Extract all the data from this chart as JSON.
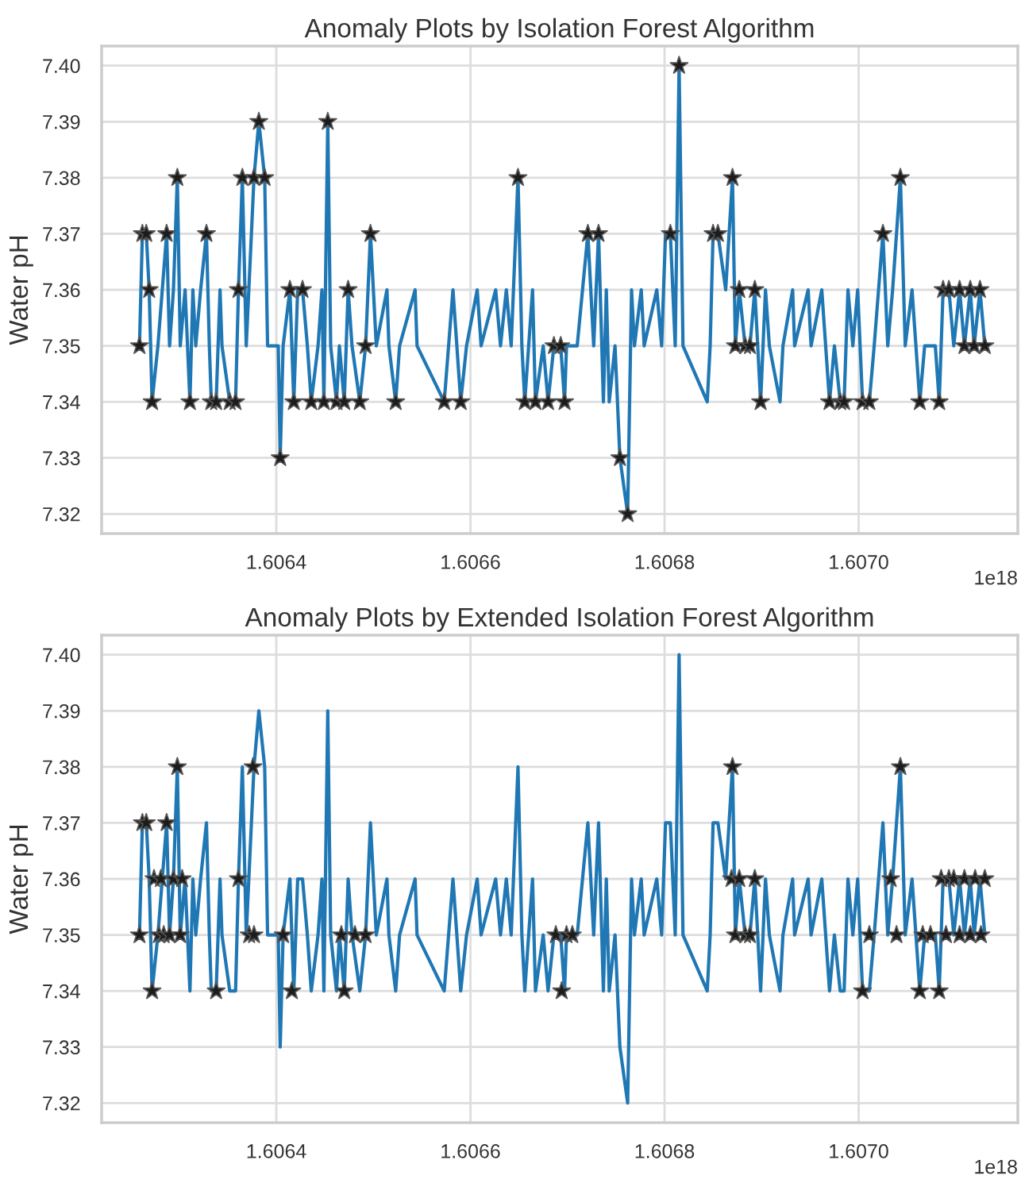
{
  "chart_data": [
    {
      "type": "line",
      "title": "Anomaly Plots by Isolation Forest Algorithm",
      "ylabel": "Water pH",
      "annotations": [
        "1e18"
      ],
      "xlim": [
        1.60622,
        1.607164
      ],
      "xticks": [
        1.6064,
        1.6066,
        1.6068,
        {
          "value": 1.607,
          "label": "1.6070"
        }
      ],
      "ylim": [
        7.3165,
        7.4035
      ],
      "yticks": [
        7.32,
        7.33,
        7.34,
        7.35,
        7.36,
        7.37,
        7.38,
        7.39,
        {
          "value": 7.4,
          "label": "7.40"
        }
      ],
      "grid": true,
      "series": [
        {
          "color": "#1f77b4",
          "marker": "none",
          "x": [
            1.606259,
            1.606262,
            1.606266,
            1.606269,
            1.606272,
            1.606278,
            1.606287,
            1.60629,
            1.606294,
            1.606298,
            1.606301,
            1.606306,
            1.606311,
            1.606314,
            1.606317,
            1.606322,
            1.606328,
            1.606331,
            1.606333,
            1.606338,
            1.606342,
            1.606344,
            1.606352,
            1.606358,
            1.606361,
            1.606365,
            1.606369,
            1.606377,
            1.606382,
            1.606388,
            1.606391,
            1.606402,
            1.606404,
            1.606407,
            1.606414,
            1.606418,
            1.606422,
            1.606427,
            1.606432,
            1.606436,
            1.606443,
            1.606447,
            1.606449,
            1.606453,
            1.606456,
            1.606462,
            1.606465,
            1.60647,
            1.606474,
            1.606478,
            1.606486,
            1.606492,
            1.606497,
            1.606503,
            1.606514,
            1.606516,
            1.606523,
            1.606527,
            1.606543,
            1.606545,
            1.606573,
            1.606582,
            1.60659,
            1.606596,
            1.606607,
            1.606611,
            1.606626,
            1.606631,
            1.606637,
            1.606642,
            1.606649,
            1.606653,
            1.606656,
            1.606664,
            1.606667,
            1.606675,
            1.60668,
            1.606686,
            1.606693,
            1.606697,
            1.606699,
            1.60671,
            1.606721,
            1.606727,
            1.606732,
            1.606737,
            1.60674,
            1.606743,
            1.606749,
            1.606754,
            1.606762,
            1.606766,
            1.606769,
            1.606776,
            1.606779,
            1.606792,
            1.606797,
            1.606801,
            1.606806,
            1.606811,
            1.606815,
            1.606819,
            1.606844,
            1.606847,
            1.60685,
            1.606855,
            1.606863,
            1.60687,
            1.606873,
            1.606877,
            1.606883,
            1.606888,
            1.606893,
            1.606899,
            1.606904,
            1.606908,
            1.606919,
            1.606922,
            1.606932,
            1.606934,
            1.606948,
            1.606951,
            1.606962,
            1.606966,
            1.60697,
            1.606975,
            1.606981,
            1.606985,
            1.606989,
            1.606994,
            1.606999,
            1.607004,
            1.607011,
            1.607016,
            1.607025,
            1.60703,
            1.607035,
            1.607043,
            1.607048,
            1.607055,
            1.607063,
            1.607068,
            1.607079,
            1.607083,
            1.607087,
            1.607093,
            1.607098,
            1.607104,
            1.607109,
            1.607115,
            1.607119,
            1.607125,
            1.60713
          ],
          "values": [
            7.35,
            7.37,
            7.37,
            7.36,
            7.34,
            7.35,
            7.37,
            7.35,
            7.36,
            7.38,
            7.35,
            7.36,
            7.34,
            7.36,
            7.35,
            7.36,
            7.37,
            7.35,
            7.34,
            7.34,
            7.36,
            7.35,
            7.34,
            7.34,
            7.36,
            7.38,
            7.35,
            7.38,
            7.39,
            7.38,
            7.35,
            7.35,
            7.33,
            7.35,
            7.36,
            7.34,
            7.36,
            7.36,
            7.35,
            7.34,
            7.35,
            7.36,
            7.34,
            7.39,
            7.35,
            7.34,
            7.35,
            7.34,
            7.36,
            7.35,
            7.34,
            7.35,
            7.37,
            7.35,
            7.36,
            7.35,
            7.34,
            7.35,
            7.36,
            7.35,
            7.34,
            7.36,
            7.34,
            7.35,
            7.36,
            7.35,
            7.36,
            7.35,
            7.36,
            7.35,
            7.38,
            7.35,
            7.34,
            7.36,
            7.34,
            7.35,
            7.34,
            7.35,
            7.35,
            7.34,
            7.35,
            7.35,
            7.37,
            7.35,
            7.37,
            7.34,
            7.36,
            7.34,
            7.35,
            7.33,
            7.32,
            7.36,
            7.35,
            7.36,
            7.35,
            7.36,
            7.35,
            7.37,
            7.37,
            7.35,
            7.4,
            7.35,
            7.34,
            7.35,
            7.37,
            7.37,
            7.36,
            7.38,
            7.35,
            7.36,
            7.35,
            7.35,
            7.36,
            7.34,
            7.36,
            7.35,
            7.34,
            7.35,
            7.36,
            7.35,
            7.36,
            7.35,
            7.36,
            7.35,
            7.34,
            7.35,
            7.34,
            7.34,
            7.36,
            7.35,
            7.36,
            7.34,
            7.34,
            7.35,
            7.37,
            7.35,
            7.36,
            7.38,
            7.35,
            7.36,
            7.34,
            7.35,
            7.35,
            7.34,
            7.36,
            7.36,
            7.35,
            7.36,
            7.35,
            7.36,
            7.35,
            7.36,
            7.35
          ]
        },
        {
          "type": "scatter",
          "color": "#1c1c1c",
          "marker": "star",
          "x": [
            1.606259,
            1.606262,
            1.606266,
            1.606269,
            1.606272,
            1.606287,
            1.606298,
            1.606311,
            1.606328,
            1.606333,
            1.606338,
            1.606352,
            1.606358,
            1.606361,
            1.606365,
            1.606377,
            1.606382,
            1.606388,
            1.606404,
            1.606414,
            1.606418,
            1.606427,
            1.606436,
            1.606449,
            1.606453,
            1.606462,
            1.60647,
            1.606474,
            1.606486,
            1.606492,
            1.606497,
            1.606523,
            1.606573,
            1.60659,
            1.606649,
            1.606656,
            1.606667,
            1.60668,
            1.606686,
            1.606693,
            1.606697,
            1.606721,
            1.606732,
            1.606754,
            1.606762,
            1.606806,
            1.606815,
            1.60685,
            1.606855,
            1.60687,
            1.606873,
            1.606877,
            1.606883,
            1.606888,
            1.606893,
            1.606899,
            1.60697,
            1.606981,
            1.606985,
            1.607004,
            1.607011,
            1.607025,
            1.607043,
            1.607063,
            1.607083,
            1.607087,
            1.607093,
            1.607104,
            1.607109,
            1.607115,
            1.607119,
            1.607125,
            1.60713
          ],
          "values": [
            7.35,
            7.37,
            7.37,
            7.36,
            7.34,
            7.37,
            7.38,
            7.34,
            7.37,
            7.34,
            7.34,
            7.34,
            7.34,
            7.36,
            7.38,
            7.38,
            7.39,
            7.38,
            7.33,
            7.36,
            7.34,
            7.36,
            7.34,
            7.34,
            7.39,
            7.34,
            7.34,
            7.36,
            7.34,
            7.35,
            7.37,
            7.34,
            7.34,
            7.34,
            7.38,
            7.34,
            7.34,
            7.34,
            7.35,
            7.35,
            7.34,
            7.37,
            7.37,
            7.33,
            7.32,
            7.37,
            7.4,
            7.37,
            7.37,
            7.38,
            7.35,
            7.36,
            7.35,
            7.35,
            7.36,
            7.34,
            7.34,
            7.34,
            7.34,
            7.34,
            7.34,
            7.37,
            7.38,
            7.34,
            7.34,
            7.36,
            7.36,
            7.36,
            7.35,
            7.36,
            7.35,
            7.36,
            7.35
          ]
        }
      ]
    },
    {
      "type": "line",
      "title": "Anomaly Plots by Extended Isolation Forest Algorithm",
      "ylabel": "Water pH",
      "annotations": [
        "1e18"
      ],
      "xlim": [
        1.60622,
        1.607164
      ],
      "xticks": [
        1.6064,
        1.6066,
        1.6068,
        {
          "value": 1.607,
          "label": "1.6070"
        }
      ],
      "ylim": [
        7.3165,
        7.4035
      ],
      "yticks": [
        7.32,
        7.33,
        7.34,
        7.35,
        7.36,
        7.37,
        7.38,
        7.39,
        {
          "value": 7.4,
          "label": "7.40"
        }
      ],
      "grid": true,
      "series": [
        {
          "color": "#1f77b4",
          "marker": "none",
          "x": [
            1.606259,
            1.606262,
            1.606266,
            1.606269,
            1.606272,
            1.606278,
            1.606287,
            1.60629,
            1.606294,
            1.606298,
            1.606301,
            1.606306,
            1.606311,
            1.606314,
            1.606317,
            1.606322,
            1.606328,
            1.606331,
            1.606333,
            1.606338,
            1.606342,
            1.606344,
            1.606352,
            1.606358,
            1.606361,
            1.606365,
            1.606369,
            1.606377,
            1.606382,
            1.606388,
            1.606391,
            1.606402,
            1.606404,
            1.606407,
            1.606414,
            1.606418,
            1.606422,
            1.606427,
            1.606432,
            1.606436,
            1.606443,
            1.606447,
            1.606449,
            1.606453,
            1.606456,
            1.606462,
            1.606465,
            1.60647,
            1.606474,
            1.606478,
            1.606486,
            1.606492,
            1.606497,
            1.606503,
            1.606514,
            1.606516,
            1.606523,
            1.606527,
            1.606543,
            1.606545,
            1.606573,
            1.606582,
            1.60659,
            1.606596,
            1.606607,
            1.606611,
            1.606626,
            1.606631,
            1.606637,
            1.606642,
            1.606649,
            1.606653,
            1.606656,
            1.606664,
            1.606667,
            1.606675,
            1.60668,
            1.606686,
            1.606693,
            1.606697,
            1.606699,
            1.60671,
            1.606721,
            1.606727,
            1.606732,
            1.606737,
            1.60674,
            1.606743,
            1.606749,
            1.606754,
            1.606762,
            1.606766,
            1.606769,
            1.606776,
            1.606779,
            1.606792,
            1.606797,
            1.606801,
            1.606806,
            1.606811,
            1.606815,
            1.606819,
            1.606844,
            1.606847,
            1.60685,
            1.606855,
            1.606863,
            1.60687,
            1.606873,
            1.606877,
            1.606883,
            1.606888,
            1.606893,
            1.606899,
            1.606904,
            1.606908,
            1.606919,
            1.606922,
            1.606932,
            1.606934,
            1.606948,
            1.606951,
            1.606962,
            1.606966,
            1.60697,
            1.606975,
            1.606981,
            1.606985,
            1.606989,
            1.606994,
            1.606999,
            1.607004,
            1.607011,
            1.607016,
            1.607025,
            1.60703,
            1.607035,
            1.607043,
            1.607048,
            1.607055,
            1.607063,
            1.607068,
            1.607079,
            1.607083,
            1.607087,
            1.607093,
            1.607098,
            1.607104,
            1.607109,
            1.607115,
            1.607119,
            1.607125,
            1.60713
          ],
          "values": [
            7.35,
            7.37,
            7.37,
            7.36,
            7.34,
            7.35,
            7.37,
            7.35,
            7.36,
            7.38,
            7.35,
            7.36,
            7.34,
            7.36,
            7.35,
            7.36,
            7.37,
            7.35,
            7.34,
            7.34,
            7.36,
            7.35,
            7.34,
            7.34,
            7.36,
            7.38,
            7.35,
            7.38,
            7.39,
            7.38,
            7.35,
            7.35,
            7.33,
            7.35,
            7.36,
            7.34,
            7.36,
            7.36,
            7.35,
            7.34,
            7.35,
            7.36,
            7.34,
            7.39,
            7.35,
            7.34,
            7.35,
            7.34,
            7.36,
            7.35,
            7.34,
            7.35,
            7.37,
            7.35,
            7.36,
            7.35,
            7.34,
            7.35,
            7.36,
            7.35,
            7.34,
            7.36,
            7.34,
            7.35,
            7.36,
            7.35,
            7.36,
            7.35,
            7.36,
            7.35,
            7.38,
            7.35,
            7.34,
            7.36,
            7.34,
            7.35,
            7.34,
            7.35,
            7.35,
            7.34,
            7.35,
            7.35,
            7.37,
            7.35,
            7.37,
            7.34,
            7.36,
            7.34,
            7.35,
            7.33,
            7.32,
            7.36,
            7.35,
            7.36,
            7.35,
            7.36,
            7.35,
            7.37,
            7.37,
            7.35,
            7.4,
            7.35,
            7.34,
            7.35,
            7.37,
            7.37,
            7.36,
            7.38,
            7.35,
            7.36,
            7.35,
            7.35,
            7.36,
            7.34,
            7.36,
            7.35,
            7.34,
            7.35,
            7.36,
            7.35,
            7.36,
            7.35,
            7.36,
            7.35,
            7.34,
            7.35,
            7.34,
            7.34,
            7.36,
            7.35,
            7.36,
            7.34,
            7.34,
            7.35,
            7.37,
            7.35,
            7.36,
            7.38,
            7.35,
            7.36,
            7.34,
            7.35,
            7.35,
            7.34,
            7.36,
            7.36,
            7.35,
            7.36,
            7.35,
            7.36,
            7.35,
            7.36,
            7.35
          ]
        },
        {
          "type": "scatter",
          "color": "#1c1c1c",
          "marker": "star",
          "x": [
            1.606259,
            1.606262,
            1.606266,
            1.606272,
            1.606274,
            1.606279,
            1.606281,
            1.606284,
            1.606287,
            1.60629,
            1.606294,
            1.606298,
            1.606301,
            1.606303,
            1.606338,
            1.606361,
            1.606372,
            1.606376,
            1.606377,
            1.606407,
            1.606416,
            1.606467,
            1.60647,
            1.606481,
            1.606492,
            1.606688,
            1.606694,
            1.606699,
            1.606705,
            1.606869,
            1.60687,
            1.606873,
            1.606877,
            1.606883,
            1.606888,
            1.606893,
            1.607004,
            1.607011,
            1.607033,
            1.607039,
            1.607043,
            1.607063,
            1.607066,
            1.607074,
            1.607083,
            1.607085,
            1.60709,
            1.607093,
            1.607098,
            1.607104,
            1.607109,
            1.607115,
            1.60712,
            1.607126,
            1.60713
          ],
          "values": [
            7.35,
            7.37,
            7.37,
            7.34,
            7.36,
            7.35,
            7.36,
            7.35,
            7.37,
            7.35,
            7.36,
            7.38,
            7.35,
            7.36,
            7.34,
            7.36,
            7.35,
            7.38,
            7.35,
            7.35,
            7.34,
            7.35,
            7.34,
            7.35,
            7.35,
            7.35,
            7.34,
            7.35,
            7.35,
            7.36,
            7.38,
            7.35,
            7.36,
            7.35,
            7.35,
            7.36,
            7.34,
            7.35,
            7.36,
            7.35,
            7.38,
            7.34,
            7.35,
            7.35,
            7.34,
            7.36,
            7.35,
            7.36,
            7.36,
            7.35,
            7.36,
            7.35,
            7.36,
            7.35,
            7.36
          ]
        }
      ]
    }
  ]
}
